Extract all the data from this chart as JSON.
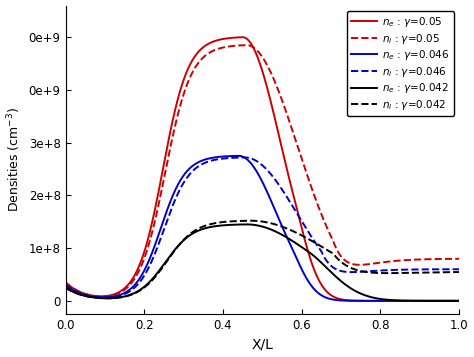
{
  "xlabel": "X/L",
  "ylabel": "Densities (cm$^{-3}$)",
  "xlim": [
    0.0,
    1.0
  ],
  "ylim": [
    -25000000.0,
    560000000.0
  ],
  "yticks": [
    0,
    100000000.0,
    200000000.0,
    300000000.0,
    400000000.0,
    500000000.0
  ],
  "xticks": [
    0.0,
    0.2,
    0.4,
    0.6,
    0.8,
    1.0
  ],
  "background_color": "#ffffff"
}
